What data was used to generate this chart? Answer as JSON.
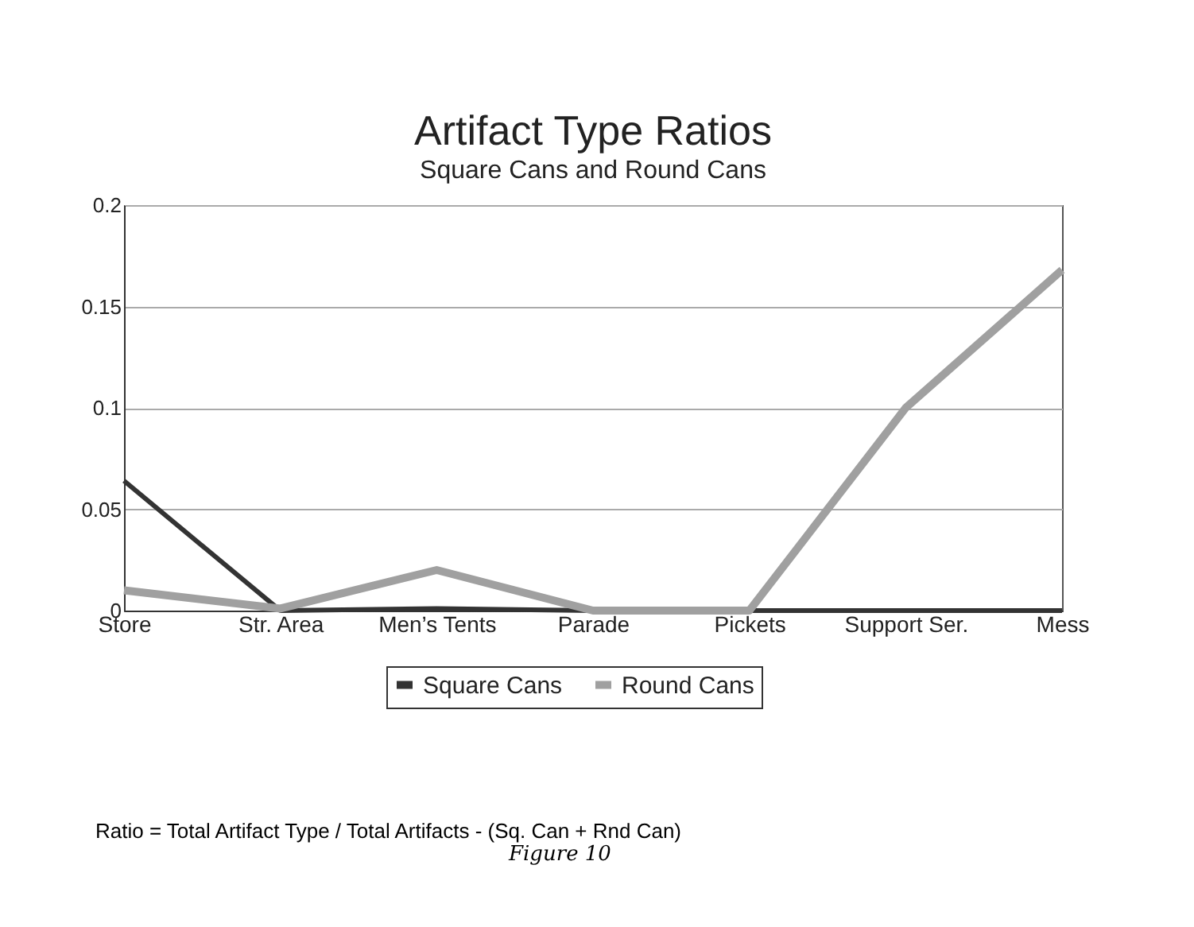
{
  "chart_data": {
    "type": "line",
    "title": "Artifact Type Ratios",
    "subtitle": "Square Cans and Round Cans",
    "categories": [
      "Store",
      "Str. Area",
      "Men’s Tents",
      "Parade",
      "Pickets",
      "Support Ser.",
      "Mess"
    ],
    "series": [
      {
        "name": "Square Cans",
        "color": "#333333",
        "values": [
          0.064,
          0,
          0.001,
          0,
          0,
          0,
          0
        ]
      },
      {
        "name": "Round Cans",
        "color": "#a0a0a0",
        "values": [
          0.01,
          0.001,
          0.02,
          0,
          0,
          0.1,
          0.168
        ]
      }
    ],
    "ylim": [
      0,
      0.2
    ],
    "yticks": [
      0,
      0.05,
      0.1,
      0.15,
      0.2
    ],
    "grid": "y",
    "legend": "bottom",
    "marker": "none",
    "line_style": "solid",
    "annotations": [
      "Ratio = Total Artifact Type / Total Artifacts - (Sq. Can + Rnd  Can)",
      "Figure 10"
    ]
  }
}
